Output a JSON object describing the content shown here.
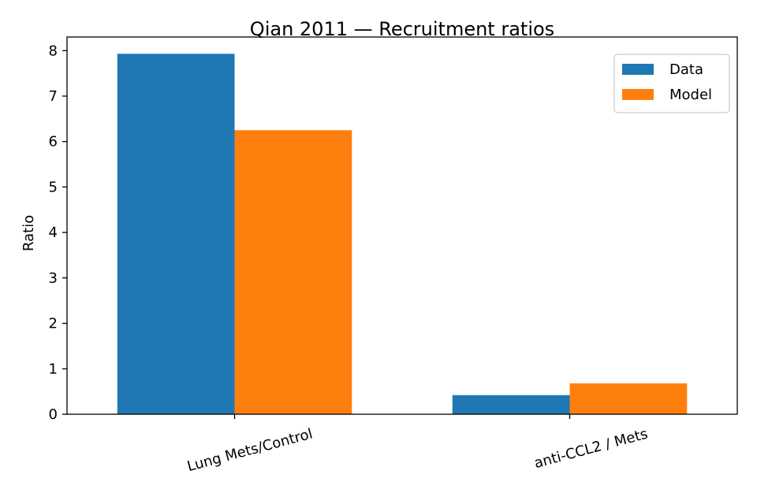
{
  "chart_data": {
    "type": "bar",
    "title": "Qian 2011 — Recruitment ratios",
    "xlabel": "",
    "ylabel": "Ratio",
    "categories": [
      "Lung Mets/Control",
      "anti-CCL2 / Mets"
    ],
    "series": [
      {
        "name": "Data",
        "values": [
          7.93,
          0.42
        ],
        "color": "#1f77b4"
      },
      {
        "name": "Model",
        "values": [
          6.25,
          0.68
        ],
        "color": "#ff7f0e"
      }
    ],
    "ylim": [
      0,
      8.3
    ],
    "yticks": [
      0,
      1,
      2,
      3,
      4,
      5,
      6,
      7,
      8
    ],
    "grid": false,
    "legend_position": "top-right"
  }
}
